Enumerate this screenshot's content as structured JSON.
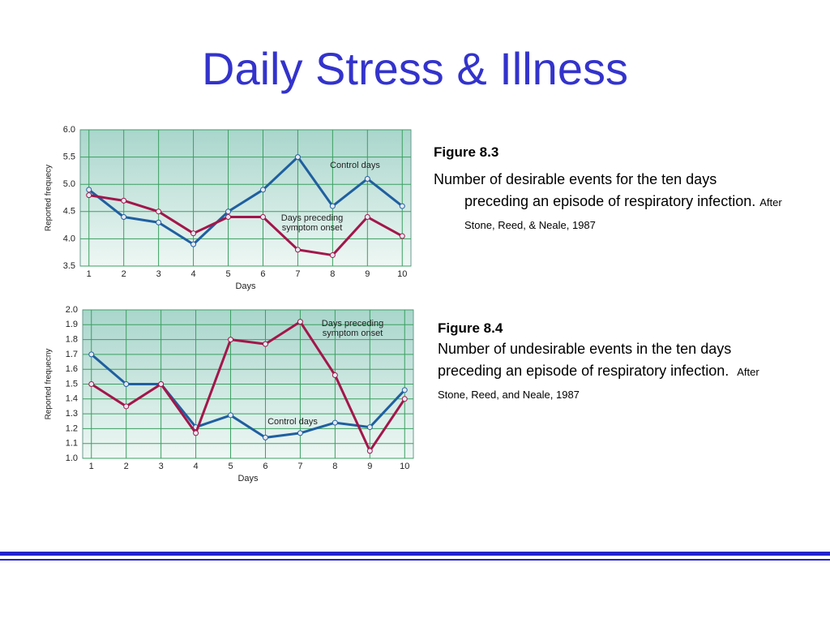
{
  "title": "Daily Stress & Illness",
  "chart_data": [
    {
      "type": "line",
      "x": [
        1,
        2,
        3,
        4,
        5,
        6,
        7,
        8,
        9,
        10
      ],
      "xlim": [
        0.75,
        10.25
      ],
      "xticks": [
        1,
        2,
        3,
        4,
        5,
        6,
        7,
        8,
        9,
        10
      ],
      "xlabel": "Days",
      "ylabel": "Reported frequecy",
      "ylim": [
        3.5,
        6.0
      ],
      "yticks": [
        {
          "value": 3.5,
          "label": "3.5"
        },
        {
          "value": 4,
          "label": "4.0"
        },
        {
          "value": 4.5,
          "label": "4.5"
        },
        {
          "value": 5,
          "label": "5.0"
        },
        {
          "value": 5.5,
          "label": "5.5"
        },
        {
          "value": 6,
          "label": "6.0"
        }
      ],
      "grid": true,
      "series": [
        {
          "name": "Control days",
          "color": "#1f5fa0",
          "values": [
            4.9,
            4.4,
            4.3,
            3.9,
            4.5,
            4.9,
            5.5,
            4.6,
            5.1,
            4.6
          ]
        },
        {
          "name": "Days preceding symptom onset",
          "color": "#a3164a",
          "values": [
            4.8,
            4.7,
            4.5,
            4.1,
            4.4,
            4.4,
            3.8,
            3.7,
            4.4,
            4.05
          ]
        }
      ]
    },
    {
      "type": "line",
      "x": [
        1,
        2,
        3,
        4,
        5,
        6,
        7,
        8,
        9,
        10
      ],
      "xlim": [
        0.75,
        10.25
      ],
      "xticks": [
        1,
        2,
        3,
        4,
        5,
        6,
        7,
        8,
        9,
        10
      ],
      "xlabel": "Days",
      "ylabel": "Reported frequecny",
      "ylim": [
        1.0,
        2.0
      ],
      "yticks": [
        {
          "value": 1,
          "label": "1.0"
        },
        1.1,
        1.2,
        1.3,
        1.4,
        1.5,
        1.6,
        1.7,
        1.8,
        1.9,
        {
          "value": 2,
          "label": "2.0"
        }
      ],
      "grid": true,
      "series": [
        {
          "name": "Control days",
          "color": "#1f5fa0",
          "values": [
            1.7,
            1.5,
            1.5,
            1.21,
            1.29,
            1.14,
            1.17,
            1.24,
            1.21,
            1.46
          ]
        },
        {
          "name": "Days preceding symptom onset",
          "color": "#a3164a",
          "values": [
            1.5,
            1.35,
            1.5,
            1.17,
            1.8,
            1.77,
            1.92,
            1.56,
            1.05,
            1.4
          ]
        }
      ]
    }
  ],
  "figures": [
    {
      "label": "Figure 8.3",
      "text": "Number of desirable events for the ten days preceding an episode of respiratory infection.",
      "source": "After Stone, Reed, & Neale, 1987"
    },
    {
      "label": "Figure 8.4",
      "text": "Number of undesirable events in the ten days preceding an episode of respiratory infection.",
      "source": "After Stone, Reed, and Neale, 1987"
    }
  ]
}
